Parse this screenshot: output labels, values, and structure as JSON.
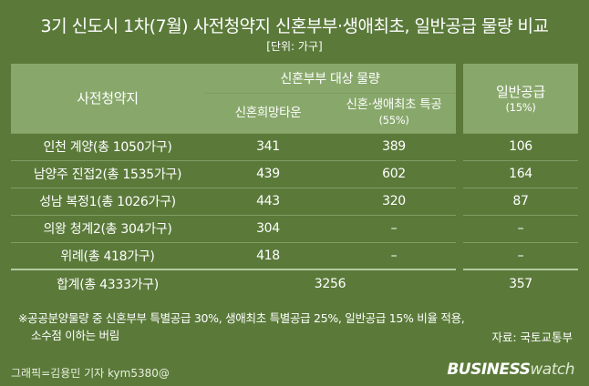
{
  "title": "3기 신도시 1차(7월) 사전청약지 신혼부부·생애최초, 일반공급 물량 비교",
  "unit": "[단위: 가구]",
  "chart_data": {
    "type": "table",
    "header": {
      "row_label": "사전청약지",
      "group_label": "신혼부부 대상 물량",
      "columns": [
        {
          "label": "신혼희망타운",
          "sub": ""
        },
        {
          "label": "신혼·생애최초 특공",
          "sub": "(55%)"
        },
        {
          "label": "일반공급",
          "sub": "(15%)"
        }
      ]
    },
    "rows": [
      {
        "name": "인천 계양(총 1050가구)",
        "values": [
          "341",
          "389",
          "106"
        ]
      },
      {
        "name": "남양주 진접2(총 1535가구)",
        "values": [
          "439",
          "602",
          "164"
        ]
      },
      {
        "name": "성남 복정1(총 1026가구)",
        "values": [
          "443",
          "320",
          "87"
        ]
      },
      {
        "name": "의왕 청계2(총 304가구)",
        "values": [
          "304",
          "–",
          "–"
        ]
      },
      {
        "name": "위례(총 418가구)",
        "values": [
          "418",
          "–",
          "–"
        ]
      }
    ],
    "total": {
      "name": "합계(총 4333가구)",
      "newlywed_total": "3256",
      "general_total": "357"
    }
  },
  "note_line1": "※공공분양물량 중 신혼부부 특별공급 30%, 생애최초 특별공급 25%, 일반공급 15% 비율 적용,",
  "note_line2": "소수점 이하는 버림",
  "source": "자료: 국토교통부",
  "credit": "그래픽=김용민 기자 kym5380@",
  "logo_main": "BUSINESS",
  "logo_tail": "watch"
}
